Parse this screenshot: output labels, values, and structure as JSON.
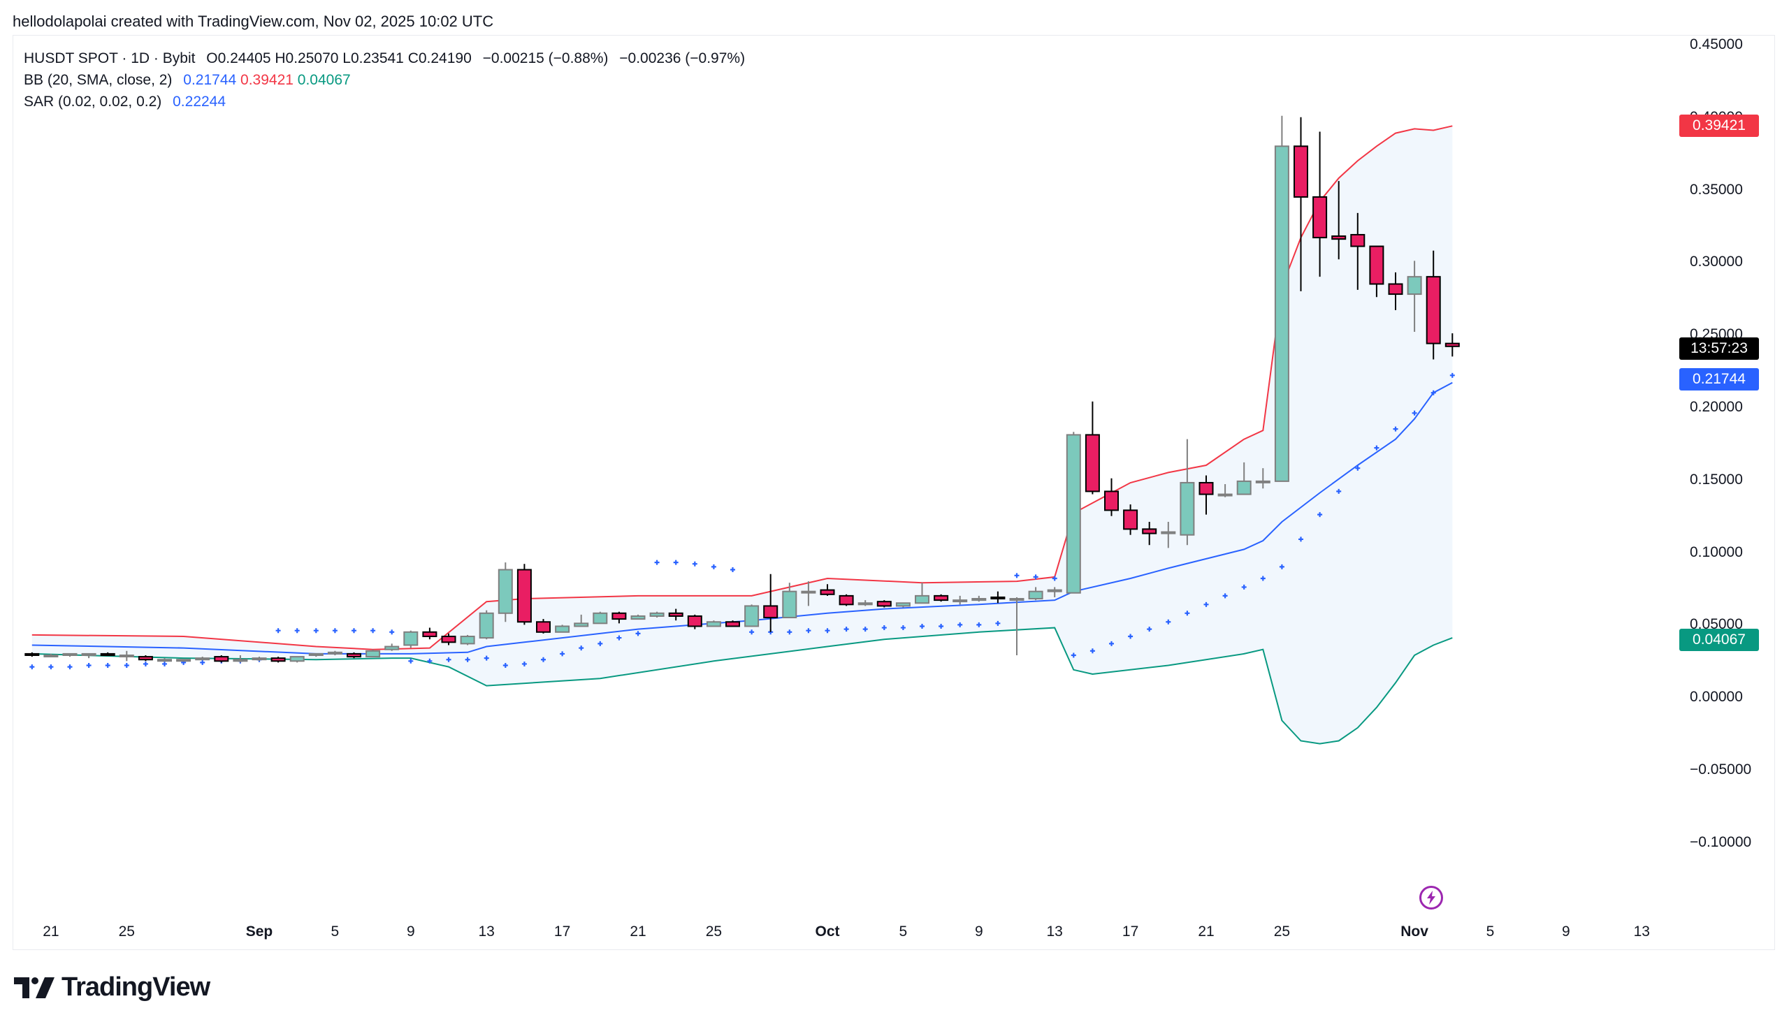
{
  "credit": "hellodolapolai created with TradingView.com, Nov 02, 2025 10:02 UTC",
  "legend": {
    "symbol": "HUSDT SPOT · 1D · Bybit",
    "ohlc": "O0.24405  H0.25070  L0.23541  C0.24190",
    "change1": "−0.00215 (−0.88%)",
    "change2": "−0.00236 (−0.97%)",
    "bb_label": "BB (20, SMA, close, 2)",
    "bb_basis": "0.21744",
    "bb_upper": "0.39421",
    "bb_lower": "0.04067",
    "sar_label": "SAR (0.02, 0.02, 0.2)",
    "sar_value": "0.22244"
  },
  "price_tags": {
    "upper": {
      "text": "0.39421",
      "price": 0.39421,
      "color": "#f23645"
    },
    "countdown": {
      "text": "13:57:23",
      "price": 0.2405,
      "color": "#000000"
    },
    "basis": {
      "text": "0.21744",
      "price": 0.2195,
      "color": "#2962ff"
    },
    "lower": {
      "text": "0.04067",
      "price": 0.0395,
      "color": "#089981"
    }
  },
  "brand": {
    "name": "TradingView"
  },
  "colors": {
    "up": "#7cc9bc",
    "down": "#e91e63",
    "upper": "#f23645",
    "basis": "#2962ff",
    "lower": "#089981",
    "fill": "#f1f7fd",
    "sar": "#2962ff"
  },
  "chart_data": {
    "type": "candlestick",
    "title": "HUSDT SPOT · 1D · Bybit",
    "xlabel": "",
    "ylabel": "",
    "ylim": [
      -0.12,
      0.46
    ],
    "yticks": [
      "0.45000",
      "0.40000",
      "0.35000",
      "0.30000",
      "0.25000",
      "0.20000",
      "0.15000",
      "0.10000",
      "0.05000",
      "0.00000",
      "−0.05000",
      "−0.10000"
    ],
    "ytick_values": [
      0.45,
      0.4,
      0.35,
      0.3,
      0.25,
      0.2,
      0.15,
      0.1,
      0.05,
      0.0,
      -0.05,
      -0.1
    ],
    "xticks": [
      {
        "label": "21",
        "day": -11
      },
      {
        "label": "25",
        "day": -7
      },
      {
        "label": "Sep",
        "day": 0,
        "bold": true
      },
      {
        "label": "5",
        "day": 4
      },
      {
        "label": "9",
        "day": 8
      },
      {
        "label": "13",
        "day": 12
      },
      {
        "label": "17",
        "day": 16
      },
      {
        "label": "21",
        "day": 20
      },
      {
        "label": "25",
        "day": 24
      },
      {
        "label": "Oct",
        "day": 30,
        "bold": true
      },
      {
        "label": "5",
        "day": 34
      },
      {
        "label": "9",
        "day": 38
      },
      {
        "label": "13",
        "day": 42
      },
      {
        "label": "17",
        "day": 46
      },
      {
        "label": "21",
        "day": 50
      },
      {
        "label": "25",
        "day": 54
      },
      {
        "label": "Nov",
        "day": 61,
        "bold": true
      },
      {
        "label": "5",
        "day": 65
      },
      {
        "label": "9",
        "day": 69
      },
      {
        "label": "13",
        "day": 73
      }
    ],
    "candles": [
      {
        "day": -12,
        "o": 0.03,
        "h": 0.031,
        "l": 0.028,
        "c": 0.029
      },
      {
        "day": -11,
        "o": 0.029,
        "h": 0.03,
        "l": 0.028,
        "c": 0.029
      },
      {
        "day": -10,
        "o": 0.029,
        "h": 0.03,
        "l": 0.028,
        "c": 0.03
      },
      {
        "day": -9,
        "o": 0.029,
        "h": 0.03,
        "l": 0.027,
        "c": 0.03
      },
      {
        "day": -8,
        "o": 0.03,
        "h": 0.031,
        "l": 0.029,
        "c": 0.029
      },
      {
        "day": -7,
        "o": 0.029,
        "h": 0.032,
        "l": 0.025,
        "c": 0.029
      },
      {
        "day": -6,
        "o": 0.028,
        "h": 0.029,
        "l": 0.025,
        "c": 0.026
      },
      {
        "day": -5,
        "o": 0.026,
        "h": 0.027,
        "l": 0.025,
        "c": 0.026
      },
      {
        "day": -4,
        "o": 0.026,
        "h": 0.026,
        "l": 0.025,
        "c": 0.026
      },
      {
        "day": -3,
        "o": 0.026,
        "h": 0.028,
        "l": 0.026,
        "c": 0.027
      },
      {
        "day": -2,
        "o": 0.028,
        "h": 0.029,
        "l": 0.024,
        "c": 0.025
      },
      {
        "day": -1,
        "o": 0.025,
        "h": 0.029,
        "l": 0.024,
        "c": 0.026
      },
      {
        "day": 0,
        "o": 0.027,
        "h": 0.028,
        "l": 0.025,
        "c": 0.027
      },
      {
        "day": 1,
        "o": 0.027,
        "h": 0.028,
        "l": 0.024,
        "c": 0.025
      },
      {
        "day": 2,
        "o": 0.025,
        "h": 0.028,
        "l": 0.024,
        "c": 0.028
      },
      {
        "day": 3,
        "o": 0.029,
        "h": 0.03,
        "l": 0.028,
        "c": 0.03
      },
      {
        "day": 4,
        "o": 0.03,
        "h": 0.032,
        "l": 0.029,
        "c": 0.031
      },
      {
        "day": 5,
        "o": 0.03,
        "h": 0.031,
        "l": 0.027,
        "c": 0.028
      },
      {
        "day": 6,
        "o": 0.028,
        "h": 0.033,
        "l": 0.028,
        "c": 0.032
      },
      {
        "day": 7,
        "o": 0.033,
        "h": 0.037,
        "l": 0.032,
        "c": 0.035
      },
      {
        "day": 8,
        "o": 0.036,
        "h": 0.046,
        "l": 0.034,
        "c": 0.045
      },
      {
        "day": 9,
        "o": 0.045,
        "h": 0.048,
        "l": 0.04,
        "c": 0.042
      },
      {
        "day": 10,
        "o": 0.042,
        "h": 0.044,
        "l": 0.036,
        "c": 0.038
      },
      {
        "day": 11,
        "o": 0.037,
        "h": 0.043,
        "l": 0.036,
        "c": 0.042
      },
      {
        "day": 12,
        "o": 0.041,
        "h": 0.06,
        "l": 0.04,
        "c": 0.058
      },
      {
        "day": 13,
        "o": 0.058,
        "h": 0.093,
        "l": 0.052,
        "c": 0.088
      },
      {
        "day": 14,
        "o": 0.088,
        "h": 0.092,
        "l": 0.05,
        "c": 0.052
      },
      {
        "day": 15,
        "o": 0.052,
        "h": 0.054,
        "l": 0.044,
        "c": 0.045
      },
      {
        "day": 16,
        "o": 0.045,
        "h": 0.05,
        "l": 0.045,
        "c": 0.049
      },
      {
        "day": 17,
        "o": 0.049,
        "h": 0.057,
        "l": 0.049,
        "c": 0.051
      },
      {
        "day": 18,
        "o": 0.051,
        "h": 0.059,
        "l": 0.051,
        "c": 0.058
      },
      {
        "day": 19,
        "o": 0.058,
        "h": 0.059,
        "l": 0.051,
        "c": 0.054
      },
      {
        "day": 20,
        "o": 0.054,
        "h": 0.057,
        "l": 0.054,
        "c": 0.056
      },
      {
        "day": 21,
        "o": 0.056,
        "h": 0.059,
        "l": 0.055,
        "c": 0.058
      },
      {
        "day": 22,
        "o": 0.058,
        "h": 0.061,
        "l": 0.053,
        "c": 0.056
      },
      {
        "day": 23,
        "o": 0.056,
        "h": 0.057,
        "l": 0.047,
        "c": 0.049
      },
      {
        "day": 24,
        "o": 0.049,
        "h": 0.053,
        "l": 0.049,
        "c": 0.052
      },
      {
        "day": 25,
        "o": 0.052,
        "h": 0.053,
        "l": 0.049,
        "c": 0.049
      },
      {
        "day": 26,
        "o": 0.049,
        "h": 0.064,
        "l": 0.049,
        "c": 0.063
      },
      {
        "day": 27,
        "o": 0.063,
        "h": 0.085,
        "l": 0.045,
        "c": 0.055
      },
      {
        "day": 28,
        "o": 0.055,
        "h": 0.079,
        "l": 0.055,
        "c": 0.073
      },
      {
        "day": 29,
        "o": 0.073,
        "h": 0.08,
        "l": 0.063,
        "c": 0.073
      },
      {
        "day": 30,
        "o": 0.074,
        "h": 0.078,
        "l": 0.07,
        "c": 0.071
      },
      {
        "day": 31,
        "o": 0.07,
        "h": 0.071,
        "l": 0.063,
        "c": 0.064
      },
      {
        "day": 32,
        "o": 0.064,
        "h": 0.067,
        "l": 0.063,
        "c": 0.065
      },
      {
        "day": 33,
        "o": 0.066,
        "h": 0.067,
        "l": 0.062,
        "c": 0.063
      },
      {
        "day": 34,
        "o": 0.063,
        "h": 0.065,
        "l": 0.062,
        "c": 0.065
      },
      {
        "day": 35,
        "o": 0.065,
        "h": 0.079,
        "l": 0.065,
        "c": 0.07
      },
      {
        "day": 36,
        "o": 0.07,
        "h": 0.071,
        "l": 0.066,
        "c": 0.067
      },
      {
        "day": 37,
        "o": 0.067,
        "h": 0.07,
        "l": 0.064,
        "c": 0.067
      },
      {
        "day": 38,
        "o": 0.067,
        "h": 0.07,
        "l": 0.066,
        "c": 0.068
      },
      {
        "day": 39,
        "o": 0.069,
        "h": 0.073,
        "l": 0.065,
        "c": 0.068
      },
      {
        "day": 40,
        "o": 0.068,
        "h": 0.069,
        "l": 0.029,
        "c": 0.068
      },
      {
        "day": 41,
        "o": 0.068,
        "h": 0.076,
        "l": 0.067,
        "c": 0.073
      },
      {
        "day": 42,
        "o": 0.073,
        "h": 0.076,
        "l": 0.069,
        "c": 0.074
      },
      {
        "day": 43,
        "o": 0.072,
        "h": 0.183,
        "l": 0.072,
        "c": 0.181
      },
      {
        "day": 44,
        "o": 0.181,
        "h": 0.204,
        "l": 0.14,
        "c": 0.142
      },
      {
        "day": 45,
        "o": 0.142,
        "h": 0.151,
        "l": 0.125,
        "c": 0.129
      },
      {
        "day": 46,
        "o": 0.129,
        "h": 0.133,
        "l": 0.112,
        "c": 0.116
      },
      {
        "day": 47,
        "o": 0.116,
        "h": 0.121,
        "l": 0.105,
        "c": 0.113
      },
      {
        "day": 48,
        "o": 0.113,
        "h": 0.121,
        "l": 0.103,
        "c": 0.114
      },
      {
        "day": 49,
        "o": 0.112,
        "h": 0.178,
        "l": 0.105,
        "c": 0.148
      },
      {
        "day": 50,
        "o": 0.148,
        "h": 0.153,
        "l": 0.126,
        "c": 0.14
      },
      {
        "day": 51,
        "o": 0.14,
        "h": 0.147,
        "l": 0.138,
        "c": 0.14
      },
      {
        "day": 52,
        "o": 0.14,
        "h": 0.162,
        "l": 0.14,
        "c": 0.149
      },
      {
        "day": 53,
        "o": 0.149,
        "h": 0.158,
        "l": 0.144,
        "c": 0.149
      },
      {
        "day": 54,
        "o": 0.149,
        "h": 0.401,
        "l": 0.149,
        "c": 0.38
      },
      {
        "day": 55,
        "o": 0.38,
        "h": 0.4,
        "l": 0.28,
        "c": 0.345
      },
      {
        "day": 56,
        "o": 0.345,
        "h": 0.39,
        "l": 0.29,
        "c": 0.317
      },
      {
        "day": 57,
        "o": 0.318,
        "h": 0.356,
        "l": 0.302,
        "c": 0.316
      },
      {
        "day": 58,
        "o": 0.319,
        "h": 0.334,
        "l": 0.281,
        "c": 0.311
      },
      {
        "day": 59,
        "o": 0.311,
        "h": 0.311,
        "l": 0.276,
        "c": 0.285
      },
      {
        "day": 60,
        "o": 0.285,
        "h": 0.293,
        "l": 0.267,
        "c": 0.278
      },
      {
        "day": 61,
        "o": 0.278,
        "h": 0.301,
        "l": 0.252,
        "c": 0.29
      },
      {
        "day": 62,
        "o": 0.29,
        "h": 0.308,
        "l": 0.233,
        "c": 0.244
      },
      {
        "day": 63,
        "o": 0.244,
        "h": 0.251,
        "l": 0.235,
        "c": 0.242
      }
    ],
    "bb_upper": [
      [
        -12,
        0.043
      ],
      [
        -4,
        0.042
      ],
      [
        3,
        0.035
      ],
      [
        6,
        0.033
      ],
      [
        9,
        0.034
      ],
      [
        12,
        0.066
      ],
      [
        14,
        0.068
      ],
      [
        20,
        0.07
      ],
      [
        26,
        0.07
      ],
      [
        30,
        0.082
      ],
      [
        35,
        0.079
      ],
      [
        40,
        0.08
      ],
      [
        42,
        0.083
      ],
      [
        43,
        0.127
      ],
      [
        44,
        0.134
      ],
      [
        46,
        0.148
      ],
      [
        48,
        0.155
      ],
      [
        50,
        0.16
      ],
      [
        52,
        0.178
      ],
      [
        53,
        0.184
      ],
      [
        54,
        0.283
      ],
      [
        55,
        0.317
      ],
      [
        56,
        0.342
      ],
      [
        57,
        0.358
      ],
      [
        58,
        0.37
      ],
      [
        59,
        0.38
      ],
      [
        60,
        0.389
      ],
      [
        61,
        0.392
      ],
      [
        62,
        0.391
      ],
      [
        63,
        0.394
      ]
    ],
    "bb_basis": [
      [
        -12,
        0.036
      ],
      [
        -4,
        0.034
      ],
      [
        3,
        0.03
      ],
      [
        8,
        0.03
      ],
      [
        11,
        0.031
      ],
      [
        12,
        0.035
      ],
      [
        14,
        0.038
      ],
      [
        20,
        0.047
      ],
      [
        26,
        0.053
      ],
      [
        30,
        0.058
      ],
      [
        33,
        0.061
      ],
      [
        38,
        0.064
      ],
      [
        42,
        0.067
      ],
      [
        43,
        0.073
      ],
      [
        46,
        0.082
      ],
      [
        48,
        0.089
      ],
      [
        52,
        0.102
      ],
      [
        53,
        0.108
      ],
      [
        54,
        0.121
      ],
      [
        56,
        0.141
      ],
      [
        58,
        0.16
      ],
      [
        60,
        0.178
      ],
      [
        61,
        0.192
      ],
      [
        62,
        0.21
      ],
      [
        63,
        0.217
      ]
    ],
    "bb_lower": [
      [
        -12,
        0.03
      ],
      [
        -4,
        0.027
      ],
      [
        3,
        0.026
      ],
      [
        7,
        0.027
      ],
      [
        8,
        0.027
      ],
      [
        10,
        0.021
      ],
      [
        12,
        0.008
      ],
      [
        18,
        0.013
      ],
      [
        24,
        0.025
      ],
      [
        30,
        0.035
      ],
      [
        33,
        0.04
      ],
      [
        38,
        0.045
      ],
      [
        42,
        0.048
      ],
      [
        43,
        0.019
      ],
      [
        44,
        0.016
      ],
      [
        48,
        0.022
      ],
      [
        52,
        0.03
      ],
      [
        53,
        0.033
      ],
      [
        54,
        -0.016
      ],
      [
        55,
        -0.03
      ],
      [
        56,
        -0.032
      ],
      [
        57,
        -0.03
      ],
      [
        58,
        -0.021
      ],
      [
        59,
        -0.007
      ],
      [
        60,
        0.01
      ],
      [
        61,
        0.029
      ],
      [
        62,
        0.036
      ],
      [
        63,
        0.041
      ]
    ],
    "sar": [
      [
        -12,
        0.021
      ],
      [
        -11,
        0.021
      ],
      [
        -10,
        0.021
      ],
      [
        -9,
        0.022
      ],
      [
        -8,
        0.022
      ],
      [
        -7,
        0.022
      ],
      [
        -6,
        0.023
      ],
      [
        -5,
        0.023
      ],
      [
        -4,
        0.024
      ],
      [
        -3,
        0.024
      ],
      [
        -2,
        0.025
      ],
      [
        -1,
        0.025
      ],
      [
        0,
        0.026
      ],
      [
        1,
        0.046
      ],
      [
        2,
        0.046
      ],
      [
        3,
        0.046
      ],
      [
        4,
        0.046
      ],
      [
        5,
        0.046
      ],
      [
        6,
        0.046
      ],
      [
        7,
        0.045
      ],
      [
        8,
        0.025
      ],
      [
        9,
        0.025
      ],
      [
        10,
        0.026
      ],
      [
        11,
        0.026
      ],
      [
        12,
        0.027
      ],
      [
        13,
        0.022
      ],
      [
        14,
        0.023
      ],
      [
        15,
        0.026
      ],
      [
        16,
        0.03
      ],
      [
        17,
        0.034
      ],
      [
        18,
        0.037
      ],
      [
        19,
        0.041
      ],
      [
        20,
        0.044
      ],
      [
        21,
        0.093
      ],
      [
        22,
        0.093
      ],
      [
        23,
        0.092
      ],
      [
        24,
        0.09
      ],
      [
        25,
        0.088
      ],
      [
        26,
        0.045
      ],
      [
        27,
        0.045
      ],
      [
        28,
        0.045
      ],
      [
        29,
        0.046
      ],
      [
        30,
        0.046
      ],
      [
        31,
        0.047
      ],
      [
        32,
        0.047
      ],
      [
        33,
        0.048
      ],
      [
        34,
        0.048
      ],
      [
        35,
        0.049
      ],
      [
        36,
        0.049
      ],
      [
        37,
        0.05
      ],
      [
        38,
        0.05
      ],
      [
        39,
        0.051
      ],
      [
        40,
        0.084
      ],
      [
        41,
        0.083
      ],
      [
        42,
        0.082
      ],
      [
        43,
        0.029
      ],
      [
        44,
        0.032
      ],
      [
        45,
        0.037
      ],
      [
        46,
        0.042
      ],
      [
        47,
        0.047
      ],
      [
        48,
        0.052
      ],
      [
        49,
        0.058
      ],
      [
        50,
        0.064
      ],
      [
        51,
        0.07
      ],
      [
        52,
        0.076
      ],
      [
        53,
        0.082
      ],
      [
        54,
        0.09
      ],
      [
        55,
        0.109
      ],
      [
        56,
        0.126
      ],
      [
        57,
        0.142
      ],
      [
        58,
        0.158
      ],
      [
        59,
        0.172
      ],
      [
        60,
        0.185
      ],
      [
        61,
        0.196
      ],
      [
        62,
        0.21
      ],
      [
        63,
        0.222
      ]
    ]
  }
}
